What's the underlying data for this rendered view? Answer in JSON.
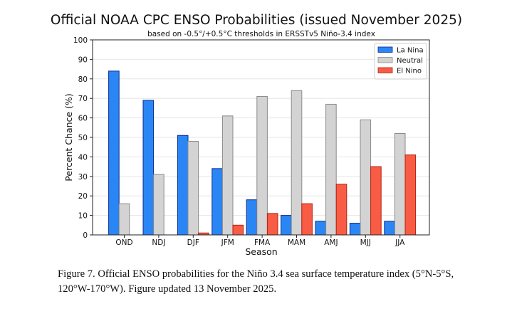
{
  "chart_data": {
    "type": "bar",
    "title": "Official NOAA CPC ENSO Probabilities (issued November 2025)",
    "subtitle": "based on -0.5°/+0.5°C thresholds in ERSSTv5 Niño-3.4 index",
    "xlabel": "Season",
    "ylabel": "Percent Chance (%)",
    "ylim": [
      0,
      100
    ],
    "yticks": [
      0,
      10,
      20,
      30,
      40,
      50,
      60,
      70,
      80,
      90,
      100
    ],
    "grid": true,
    "legend_position": "top-right",
    "categories": [
      "OND",
      "NDJ",
      "DJF",
      "JFM",
      "FMA",
      "MAM",
      "AMJ",
      "MJJ",
      "JJA"
    ],
    "series": [
      {
        "name": "La Nina",
        "color": "#2a86f5",
        "edge": "#0b2a8a",
        "values": [
          84,
          69,
          51,
          34,
          18,
          10,
          7,
          6,
          7
        ]
      },
      {
        "name": "Neutral",
        "color": "#d3d3d3",
        "edge": "#8a8a8a",
        "values": [
          16,
          31,
          48,
          61,
          71,
          74,
          67,
          59,
          52
        ]
      },
      {
        "name": "El Nino",
        "color": "#f95c45",
        "edge": "#b32010",
        "values": [
          0,
          0,
          1,
          5,
          11,
          16,
          26,
          35,
          41
        ]
      }
    ]
  },
  "caption": {
    "line1": "Figure 7. Official ENSO probabilities for the Niño 3.4 sea surface temperature index (5°N-5°S,",
    "line2": "120°W-170°W). Figure updated 13 November 2025."
  }
}
